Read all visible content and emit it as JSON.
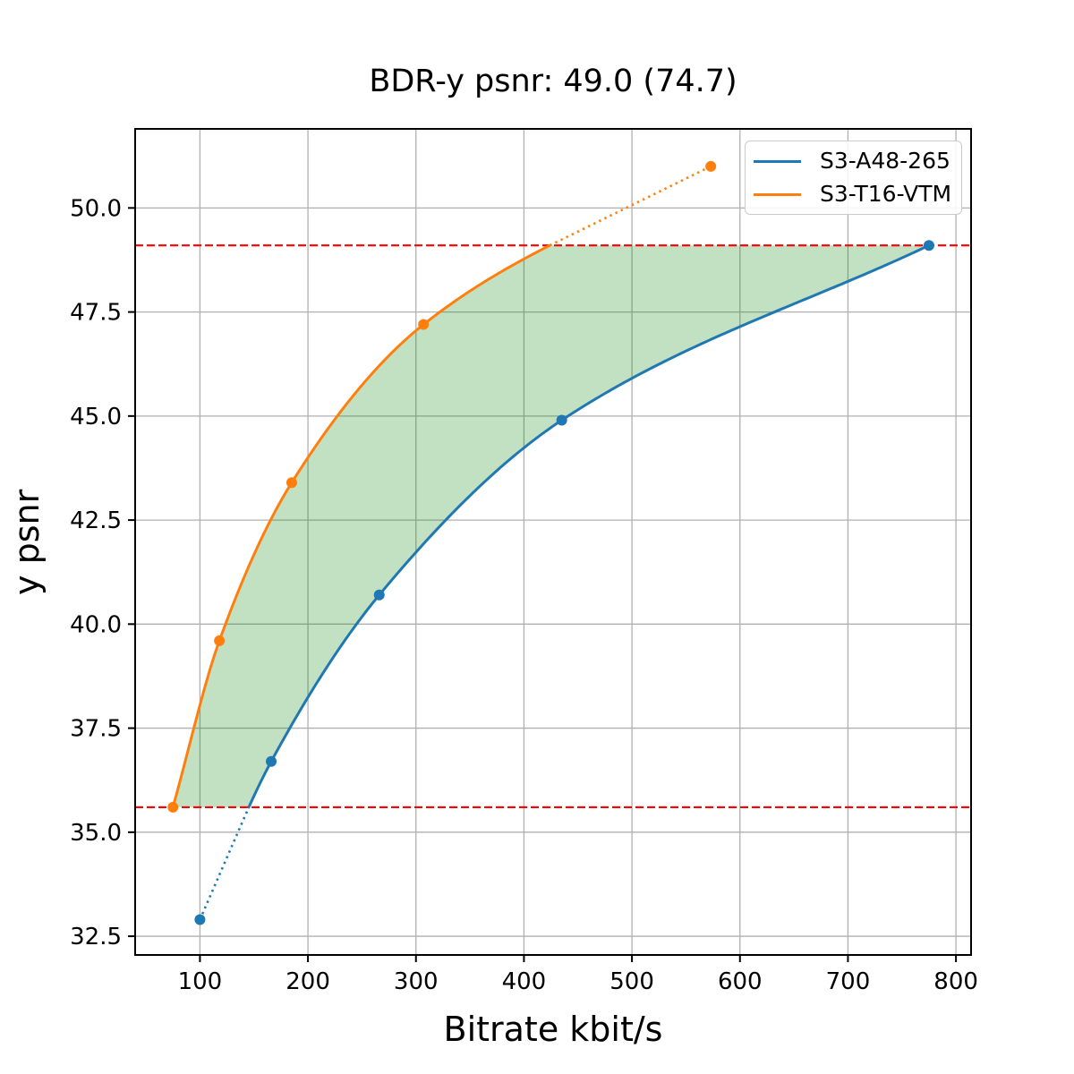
{
  "chart_data": {
    "type": "line",
    "title": "BDR-y psnr: 49.0 (74.7)",
    "xlabel": "Bitrate kbit/s",
    "ylabel": "y psnr",
    "xlim": [
      40,
      814
    ],
    "ylim": [
      32.05,
      51.9
    ],
    "xticks": [
      "100",
      "200",
      "300",
      "400",
      "500",
      "600",
      "700",
      "800"
    ],
    "yticks": [
      "32.5",
      "35.0",
      "37.5",
      "40.0",
      "42.5",
      "45.0",
      "47.5",
      "50.0"
    ],
    "grid": true,
    "grid_color": "#b0b0b0",
    "series": [
      {
        "name": "S3-A48-265",
        "color": "#1f77b4",
        "x": [
          100,
          166,
          266,
          435,
          775
        ],
        "y": [
          32.9,
          36.7,
          40.7,
          44.9,
          49.1
        ]
      },
      {
        "name": "S3-T16-VTM",
        "color": "#ff7f0e",
        "x": [
          75,
          118,
          185,
          307,
          573
        ],
        "y": [
          35.6,
          39.6,
          43.4,
          47.2,
          51.0
        ]
      }
    ],
    "bd_interval_lines": {
      "style": "dashed",
      "color": "#ff0000",
      "values": [
        35.6,
        49.1
      ]
    },
    "shaded_region": {
      "description": "area between the two rate-distortion curves inside the overlap interval",
      "color": "#008000",
      "opacity": 0.24
    },
    "legend": {
      "position": "upper right",
      "entries": [
        "S3-A48-265",
        "S3-T16-VTM"
      ]
    }
  }
}
